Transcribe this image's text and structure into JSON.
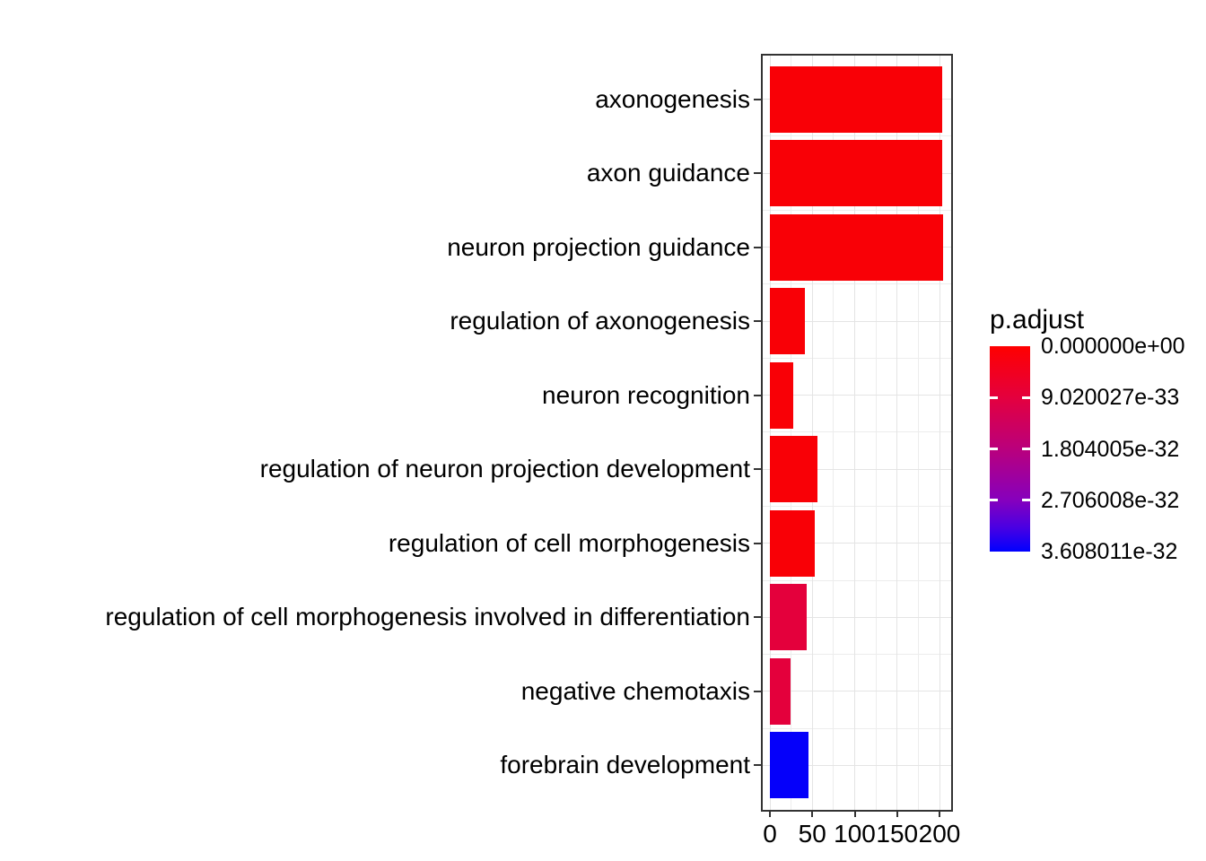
{
  "figure": {
    "background": "#ffffff"
  },
  "chart_data": {
    "type": "bar",
    "orientation": "horizontal",
    "title": "",
    "xlabel": "",
    "ylabel": "",
    "categories": [
      "axonogenesis",
      "axon guidance",
      "neuron projection guidance",
      "regulation of axonogenesis",
      "neuron recognition",
      "regulation of neuron projection development",
      "regulation of cell morphogenesis",
      "regulation of cell morphogenesis involved in differentiation",
      "negative chemotaxis",
      "forebrain development"
    ],
    "values": [
      203,
      203,
      204,
      41,
      28,
      56,
      53,
      43,
      24,
      46
    ],
    "bar_colors": [
      "#f90006",
      "#f90006",
      "#f90006",
      "#f90006",
      "#f90006",
      "#f90006",
      "#f90006",
      "#e4003c",
      "#e4003c",
      "#0500fa"
    ],
    "x_ticks": [
      "0",
      "50",
      "100",
      "150",
      "200"
    ],
    "x_tick_values": [
      0,
      50,
      100,
      150,
      200
    ],
    "x_minor_values": [
      25,
      75,
      125,
      175
    ],
    "xlim": [
      -10,
      214
    ],
    "grid": "major+minor",
    "legend": {
      "title": "p.adjust",
      "position": "right",
      "tick_labels": [
        "0.000000e+00",
        "9.020027e-33",
        "1.804005e-32",
        "2.706008e-32",
        "3.608011e-32"
      ],
      "gradient_stops": [
        {
          "pos": 0.0,
          "color": "#ff0000"
        },
        {
          "pos": 0.25,
          "color": "#e4003e"
        },
        {
          "pos": 0.5,
          "color": "#ba007c"
        },
        {
          "pos": 0.75,
          "color": "#8600bd"
        },
        {
          "pos": 0.88,
          "color": "#4b00e2"
        },
        {
          "pos": 1.0,
          "color": "#0000ff"
        }
      ]
    }
  },
  "colors": {
    "grid_major": "#e4e4e4",
    "grid_minor": "#ededed",
    "panel_border": "#333333",
    "axis_text": "#000000",
    "tick": "#333333"
  }
}
